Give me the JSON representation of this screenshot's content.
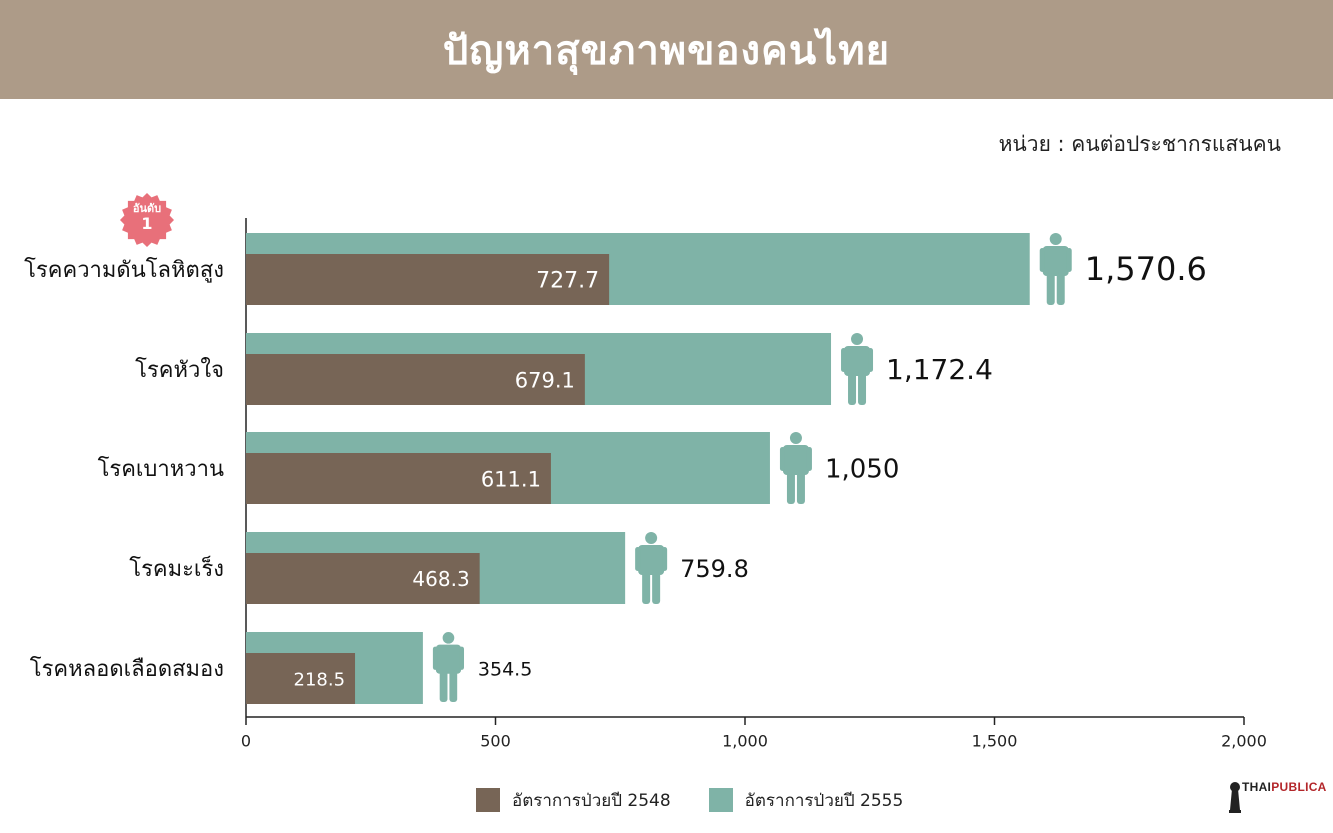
{
  "title": "ปัญหาสุขภาพของคนไทย",
  "unit_label": "หน่วย : คนต่อประชากรแสนคน",
  "rank_badge": {
    "label": "อันดับ",
    "number": "1"
  },
  "colors": {
    "header_bg": "#ad9b88",
    "series_2548": "#776556",
    "series_2555": "#7fb3a7",
    "badge": "#e8707a",
    "axis": "#222222"
  },
  "chart_data": {
    "type": "bar",
    "orientation": "horizontal",
    "categories": [
      "โรคความดันโลหิตสูง",
      "โรคหัวใจ",
      "โรคเบาหวาน",
      "โรคมะเร็ง",
      "โรคหลอดเลือดสมอง"
    ],
    "series": [
      {
        "name": "อัตราการป่วยปี 2548",
        "values": [
          727.7,
          679.1,
          611.1,
          468.3,
          218.5
        ],
        "labels": [
          "727.7",
          "679.1",
          "611.1",
          "468.3",
          "218.5"
        ]
      },
      {
        "name": "อัตราการป่วยปี 2555",
        "values": [
          1570.6,
          1172.4,
          1050,
          759.8,
          354.5
        ],
        "labels": [
          "1,570.6",
          "1,172.4",
          "1,050",
          "759.8",
          "354.5"
        ]
      }
    ],
    "xlim": [
      0,
      2000
    ],
    "xticks": [
      0,
      500,
      1000,
      1500,
      2000
    ],
    "xtick_labels": [
      "0",
      "500",
      "1,000",
      "1,500",
      "2,000"
    ],
    "legend_position": "bottom",
    "icon": "person-icon"
  },
  "legend": [
    {
      "label": "อัตราการป่วยปี 2548"
    },
    {
      "label": "อัตราการป่วยปี 2555"
    }
  ],
  "brand": {
    "part1": "THAI",
    "part2": "PUBLICA"
  }
}
